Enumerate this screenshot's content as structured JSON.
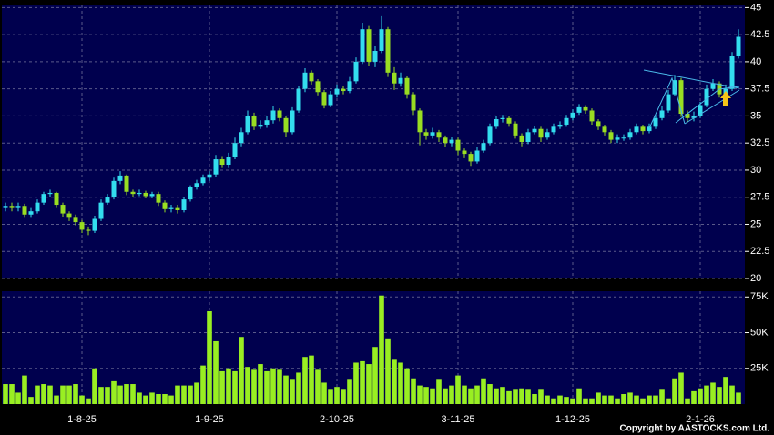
{
  "chart_data": [
    {
      "type": "candlestick",
      "categories": [
        null,
        null,
        null,
        null,
        null,
        null,
        null,
        null,
        null,
        null,
        null,
        null,
        "1-8-25",
        null,
        null,
        null,
        null,
        null,
        null,
        null,
        null,
        null,
        null,
        null,
        null,
        null,
        null,
        null,
        null,
        null,
        null,
        null,
        "1-9-25",
        null,
        null,
        null,
        null,
        null,
        null,
        null,
        null,
        null,
        null,
        null,
        null,
        null,
        null,
        null,
        null,
        null,
        null,
        null,
        "2-10-25",
        null,
        null,
        null,
        null,
        null,
        null,
        null,
        null,
        null,
        null,
        null,
        null,
        null,
        null,
        null,
        null,
        null,
        null,
        "3-11-25",
        null,
        null,
        null,
        null,
        null,
        null,
        null,
        null,
        null,
        null,
        null,
        null,
        null,
        null,
        null,
        null,
        null,
        "1-12-25",
        null,
        null,
        null,
        null,
        null,
        null,
        null,
        null,
        null,
        null,
        null,
        null,
        null,
        null,
        null,
        null,
        null,
        null,
        null,
        "2-1-26",
        null,
        null,
        null,
        null,
        null,
        null
      ],
      "open": [
        26.5,
        26.7,
        26.5,
        26.7,
        25.9,
        26.2,
        27,
        27.8,
        27.9,
        26.8,
        26,
        25.6,
        25.2,
        24.5,
        24.4,
        25.5,
        27,
        27.5,
        29,
        29.5,
        28,
        27.8,
        27.9,
        27.6,
        27.8,
        27,
        26.4,
        26.5,
        26.3,
        27.3,
        28.4,
        28.8,
        29.3,
        29.6,
        31,
        30.5,
        31.2,
        32.5,
        33.5,
        35,
        34,
        34.2,
        34.6,
        35.5,
        34.8,
        33.5,
        35.5,
        37.5,
        39,
        38.2,
        37.2,
        36,
        37,
        37.5,
        37.3,
        38.2,
        40,
        43,
        40,
        41,
        43,
        39,
        38,
        38.5,
        37,
        35.5,
        33.5,
        33.2,
        33.5,
        33,
        32.5,
        32.8,
        31.8,
        31.5,
        30.8,
        31.8,
        32.5,
        34,
        34.7,
        34.8,
        34.3,
        33.2,
        32.6,
        33.5,
        33.8,
        33,
        33.5,
        34,
        34.2,
        34.8,
        35.3,
        35.8,
        35.5,
        34.5,
        34,
        33.5,
        32.8,
        33,
        33,
        33.5,
        34,
        33.6,
        34,
        34.8,
        35.5,
        37,
        38.3,
        35.2,
        34.8,
        35,
        36,
        37.5,
        38,
        37,
        37.5,
        40.5
      ],
      "high": [
        27,
        27,
        27,
        26.9,
        26.5,
        27.3,
        28,
        28.2,
        28,
        27,
        26.2,
        25.9,
        25.4,
        24.8,
        25.8,
        27.3,
        27.8,
        29.3,
        29.9,
        29.6,
        28.2,
        28.2,
        28.1,
        28,
        28,
        27.2,
        26.8,
        26.8,
        27.5,
        28.6,
        29.1,
        29.6,
        29.9,
        31.4,
        31.3,
        31.6,
        33,
        33.9,
        35.5,
        35.3,
        34.6,
        35,
        35.9,
        35.7,
        35,
        35.8,
        37.8,
        39.4,
        39.2,
        38.4,
        37.4,
        37.3,
        37.9,
        37.8,
        38.6,
        40.4,
        43.6,
        43.3,
        41.5,
        44.2,
        43.2,
        39.5,
        39,
        38.7,
        37.2,
        35.7,
        33.8,
        33.9,
        33.7,
        33.2,
        33.1,
        33,
        32,
        31.7,
        32.1,
        32.8,
        34.3,
        35,
        35.1,
        35,
        34.5,
        33.4,
        33.8,
        34.1,
        34,
        33.8,
        34.3,
        34.5,
        35.1,
        35.6,
        36.1,
        36,
        35.7,
        34.7,
        34.2,
        33.7,
        33.3,
        33.3,
        33.8,
        34.3,
        34.2,
        34.3,
        35.1,
        35.9,
        37.4,
        38.8,
        38.5,
        35.5,
        35.4,
        36.3,
        37.9,
        38.4,
        38.2,
        37.9,
        40.9,
        43
      ],
      "low": [
        26.2,
        26.2,
        26.2,
        25.6,
        25.6,
        26,
        26.8,
        27.5,
        26.5,
        25.7,
        25.3,
        24.9,
        24.2,
        24,
        24.2,
        25.3,
        26.8,
        27.3,
        28.7,
        27.7,
        27.5,
        27.6,
        27.4,
        27.4,
        26.7,
        26.1,
        26.1,
        26,
        26.1,
        27.1,
        28.2,
        28.6,
        29,
        29.4,
        30.2,
        30.2,
        31,
        32.2,
        33.3,
        33.7,
        33.8,
        33.9,
        34.3,
        34.5,
        33.1,
        33.3,
        35.3,
        37.2,
        37.9,
        36.9,
        35.7,
        35.8,
        36.7,
        37,
        37.1,
        38,
        39.8,
        39.6,
        39.5,
        40.8,
        38.6,
        37.4,
        37.7,
        36.6,
        35.1,
        32.3,
        32.8,
        32.9,
        32.6,
        32.1,
        32.2,
        31.4,
        31.1,
        30.4,
        30.6,
        31.6,
        32.3,
        33.8,
        34.4,
        34,
        32.9,
        32.2,
        32.4,
        33.3,
        32.6,
        32.8,
        33.3,
        33.8,
        34,
        34.6,
        35.1,
        35.2,
        34.2,
        33.7,
        33.2,
        32.5,
        32.5,
        32.7,
        32.8,
        33.3,
        33.3,
        33.4,
        33.8,
        34.6,
        35.3,
        36.8,
        34.9,
        34.4,
        34.5,
        34.8,
        35.8,
        37.3,
        36.7,
        36.8,
        37.3,
        40.3
      ],
      "close": [
        26.7,
        26.5,
        26.7,
        25.9,
        26.2,
        27,
        27.8,
        27.9,
        26.8,
        26,
        25.6,
        25.2,
        24.5,
        24.4,
        25.5,
        27,
        27.5,
        29,
        29.5,
        28,
        27.8,
        27.9,
        27.6,
        27.8,
        27,
        26.4,
        26.5,
        26.3,
        27.3,
        28.4,
        28.8,
        29.3,
        29.6,
        31,
        30.5,
        31.2,
        32.5,
        33.5,
        35,
        34,
        34.2,
        34.6,
        35.5,
        34.8,
        33.5,
        35.5,
        37.5,
        39,
        38.2,
        37.2,
        36,
        37,
        37.5,
        37.3,
        38.2,
        40,
        43,
        40,
        41,
        43,
        39,
        38,
        38.5,
        37,
        35.5,
        33.5,
        33.2,
        33.5,
        33,
        32.5,
        32.8,
        31.8,
        31.5,
        30.8,
        31.8,
        32.5,
        34,
        34.7,
        34.8,
        34.3,
        33.2,
        32.6,
        33.5,
        33.8,
        33,
        33.5,
        34,
        34.2,
        34.8,
        35.3,
        35.8,
        35.5,
        34.5,
        34,
        33.5,
        32.8,
        33,
        33,
        33.5,
        34,
        33.6,
        34,
        34.8,
        35.5,
        37,
        38.3,
        35.2,
        34.8,
        35,
        36,
        37.5,
        38,
        37,
        37.5,
        40.5,
        42.3
      ],
      "up_color": "#33ddee",
      "down_color": "#99dd22",
      "ylim": [
        20,
        45.2
      ],
      "yticks": [
        20,
        22.5,
        25,
        27.5,
        30,
        32.5,
        35,
        37.5,
        40,
        42.5,
        45
      ],
      "grid": true
    },
    {
      "type": "bar",
      "color": "#99ee22",
      "values": [
        14000,
        14000,
        8000,
        20000,
        5000,
        13000,
        14000,
        13000,
        6000,
        13000,
        13000,
        14000,
        6000,
        4000,
        25000,
        12000,
        12000,
        16000,
        13000,
        14000,
        14000,
        8000,
        6000,
        8000,
        7000,
        7000,
        6000,
        13000,
        13000,
        13000,
        15000,
        27000,
        65000,
        44000,
        23000,
        25000,
        23000,
        47000,
        26000,
        24000,
        28000,
        23000,
        25000,
        24000,
        20000,
        17000,
        22000,
        33000,
        34000,
        24000,
        15000,
        10000,
        12000,
        10000,
        17000,
        29000,
        30000,
        28000,
        40000,
        76000,
        46000,
        31000,
        29000,
        25000,
        18000,
        13000,
        12000,
        11000,
        17000,
        11000,
        13000,
        20000,
        13000,
        11000,
        13000,
        18000,
        14000,
        11000,
        12000,
        9000,
        10000,
        11000,
        10000,
        7000,
        10000,
        6000,
        4000,
        6000,
        5000,
        4000,
        11000,
        4000,
        4000,
        8000,
        6000,
        6000,
        4000,
        7000,
        8000,
        6000,
        4000,
        6000,
        6000,
        10000,
        4000,
        18000,
        22000,
        4000,
        9000,
        11000,
        13000,
        15000,
        12000,
        19000,
        13000,
        8000
      ],
      "ylim": [
        0,
        79000
      ],
      "yticks": [
        {
          "value": 25000,
          "label": "25K"
        },
        {
          "value": 50000,
          "label": "50K"
        },
        {
          "value": 75000,
          "label": "75K"
        }
      ],
      "grid": true
    }
  ],
  "copyright": "Copyright by AASTOCKS.com Ltd."
}
